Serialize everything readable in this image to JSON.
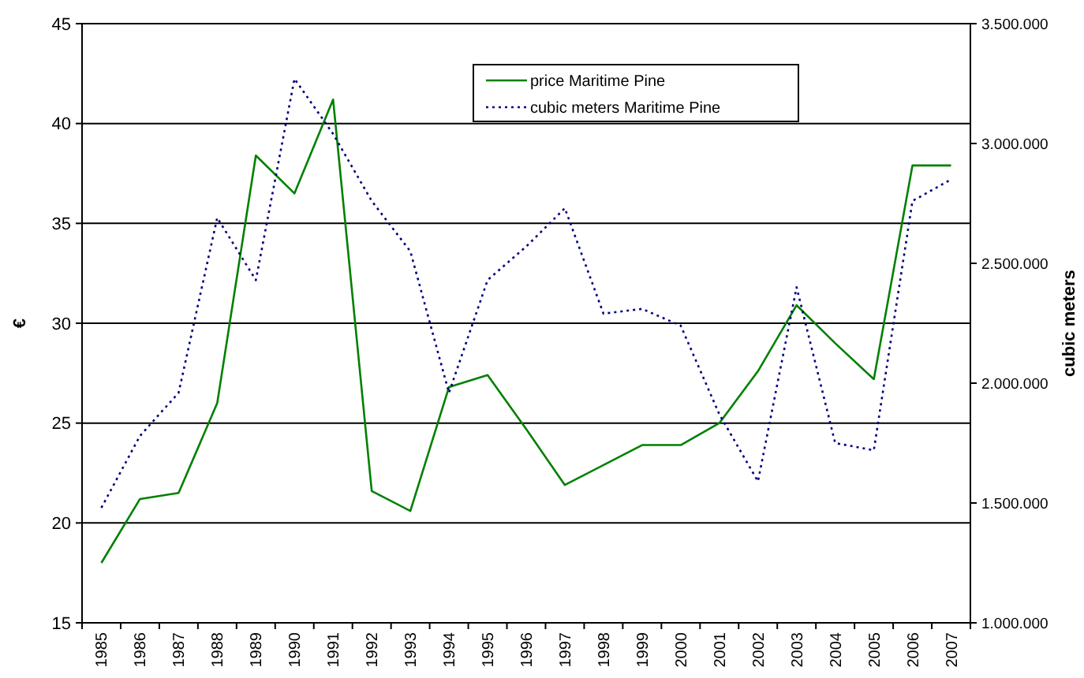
{
  "chart_data": {
    "type": "line",
    "ylabel": "€",
    "y2label": "cubic meters",
    "categories": [
      "1985",
      "1986",
      "1987",
      "1988",
      "1989",
      "1990",
      "1991",
      "1992",
      "1993",
      "1994",
      "1995",
      "1996",
      "1997",
      "1998",
      "1999",
      "2000",
      "2001",
      "2002",
      "2003",
      "2004",
      "2005",
      "2006",
      "2007"
    ],
    "series": [
      {
        "name": "price Maritime Pine",
        "color": "#008000",
        "line_style": "solid",
        "values": [
          18.0,
          21.2,
          21.5,
          26.0,
          38.4,
          36.5,
          41.2,
          21.6,
          20.6,
          26.8,
          27.4,
          24.7,
          21.9,
          22.9,
          23.9,
          23.9,
          25.0,
          27.6,
          30.9,
          29.0,
          27.2,
          37.9,
          37.9
        ]
      },
      {
        "name": "cubic meters Maritime Pine",
        "color": "#000080",
        "line_style": "dotted",
        "axis": "y2",
        "values": [
          1480000,
          1780000,
          1960000,
          2690000,
          2430000,
          3270000,
          3040000,
          2760000,
          2550000,
          1960000,
          2430000,
          2570000,
          2730000,
          2290000,
          2310000,
          2240000,
          1870000,
          1590000,
          2400000,
          1750000,
          1720000,
          2760000,
          2850000
        ]
      }
    ],
    "ylim": [
      15,
      45
    ],
    "yticks": [
      15,
      20,
      25,
      30,
      35,
      40,
      45
    ],
    "y2lim": [
      1000000,
      3500000
    ],
    "y2ticks": [
      {
        "value": 1000000,
        "label": "1.000.000"
      },
      {
        "value": 1500000,
        "label": "1.500.000"
      },
      {
        "value": 2000000,
        "label": "2.000.000"
      },
      {
        "value": 2500000,
        "label": "2.500.000"
      },
      {
        "value": 3000000,
        "label": "3.000.000"
      },
      {
        "value": 3500000,
        "label": "3.500.000"
      }
    ],
    "grid": "y",
    "legend": "top"
  }
}
